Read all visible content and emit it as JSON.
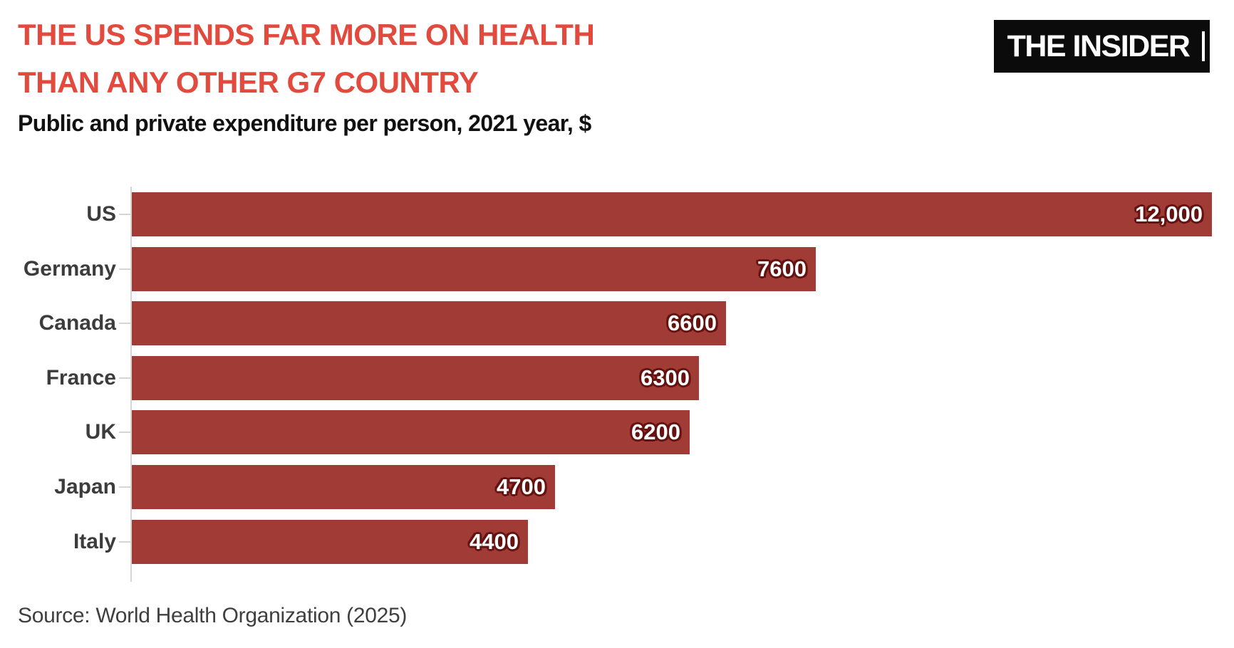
{
  "header": {
    "title_line1": "THE US SPENDS FAR MORE ON HEALTH",
    "title_line2": "THAN ANY OTHER G7 COUNTRY",
    "subtitle": "Public and private expenditure per person, 2021 year, $",
    "logo_text": "THE INSIDER"
  },
  "chart_data": {
    "type": "bar",
    "orientation": "horizontal",
    "title": "THE US SPENDS FAR MORE ON HEALTH THAN ANY OTHER G7 COUNTRY",
    "subtitle": "Public and private expenditure per person, 2021 year, $",
    "categories": [
      "US",
      "Germany",
      "Canada",
      "France",
      "UK",
      "Japan",
      "Italy"
    ],
    "values": [
      12000,
      7600,
      6600,
      6300,
      6200,
      4700,
      4400
    ],
    "value_labels": [
      "12,000",
      "7600",
      "6600",
      "6300",
      "6200",
      "4700",
      "4400"
    ],
    "xlim": [
      0,
      12000
    ],
    "grid": false,
    "legend": false,
    "value_labels_position": "inside-end"
  },
  "footer": {
    "source": "Source: World Health Organization (2025)"
  },
  "colors": {
    "title": "#e14a3d",
    "bar": "#a03b36",
    "value_outline": "#641311",
    "axis": "#d6d6d6",
    "label": "#3c3c3c",
    "logo_bg": "#0b0b0b"
  }
}
